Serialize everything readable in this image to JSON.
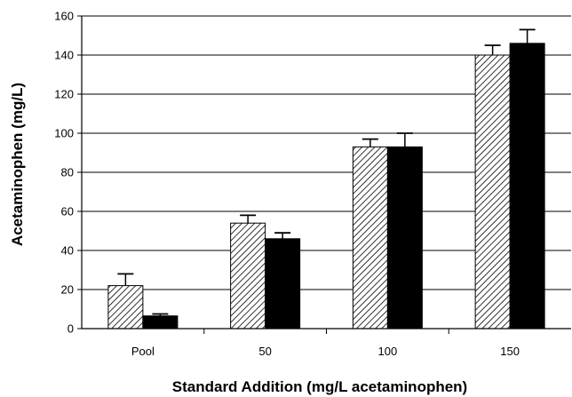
{
  "chart_data": {
    "type": "bar",
    "title": "",
    "xlabel": "Standard Addition (mg/L acetaminophen)",
    "ylabel": "Acetaminophen (mg/L)",
    "categories": [
      "Pool",
      "50",
      "100",
      "150"
    ],
    "ylim": [
      0,
      160
    ],
    "yticks": [
      0,
      20,
      40,
      60,
      80,
      100,
      120,
      140,
      160
    ],
    "grid": true,
    "legend": "none",
    "series": [
      {
        "pattern": "hatched",
        "values": [
          22,
          54,
          93,
          140
        ],
        "errors": [
          6,
          4,
          4,
          5
        ]
      },
      {
        "pattern": "solid",
        "color": "#000000",
        "values": [
          6.5,
          46,
          93,
          146
        ],
        "errors": [
          1,
          3,
          7,
          7
        ]
      }
    ]
  }
}
